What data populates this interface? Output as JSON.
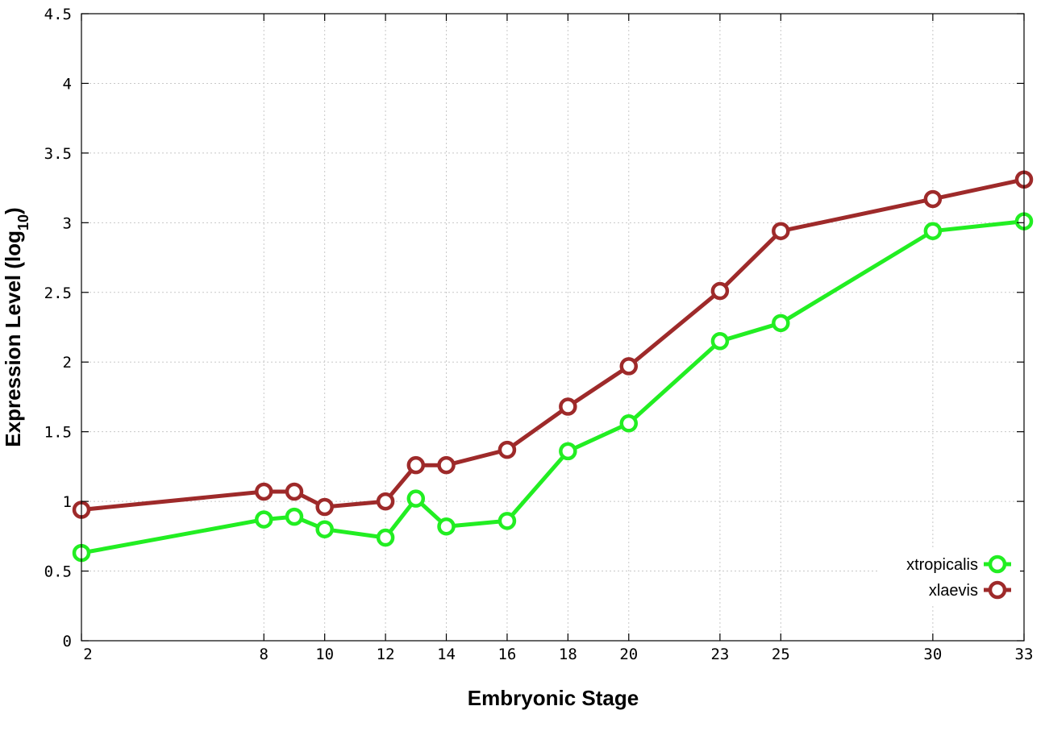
{
  "chart_data": {
    "type": "line",
    "xlabel": "Embryonic Stage",
    "ylabel": "Expression Level (log",
    "ylabel_sub": "10",
    "ylabel_end": ")",
    "xlim": [
      2,
      33
    ],
    "ylim": [
      0,
      4.5
    ],
    "x_ticks": [
      2,
      8,
      10,
      12,
      14,
      16,
      18,
      20,
      23,
      25,
      30,
      33
    ],
    "x_tick_labels": [
      "2",
      "8",
      "10",
      "12",
      "14",
      "16",
      "18",
      "20",
      "23",
      "25",
      "30",
      "33"
    ],
    "y_ticks": [
      0,
      0.5,
      1,
      1.5,
      2,
      2.5,
      3,
      3.5,
      4,
      4.5
    ],
    "y_tick_labels": [
      "0",
      "0.5",
      "1",
      "1.5",
      "2",
      "2.5",
      "3",
      "3.5",
      "4",
      "4.5"
    ],
    "grid": true,
    "legend_position": "bottom-right",
    "series": [
      {
        "name": "xtropicalis",
        "color": "#22ee22",
        "x": [
          2,
          8,
          9,
          10,
          12,
          13,
          14,
          16,
          18,
          20,
          23,
          25,
          30,
          33
        ],
        "y": [
          0.63,
          0.87,
          0.89,
          0.8,
          0.74,
          1.02,
          0.82,
          0.86,
          1.36,
          1.56,
          2.15,
          2.28,
          2.94,
          3.01
        ]
      },
      {
        "name": "xlaevis",
        "color": "#9e2a2a",
        "x": [
          2,
          8,
          9,
          10,
          12,
          13,
          14,
          16,
          18,
          20,
          23,
          25,
          30,
          33
        ],
        "y": [
          0.94,
          1.07,
          1.07,
          0.96,
          1.0,
          1.26,
          1.26,
          1.37,
          1.68,
          1.97,
          2.51,
          2.94,
          3.17,
          3.31
        ]
      }
    ]
  }
}
